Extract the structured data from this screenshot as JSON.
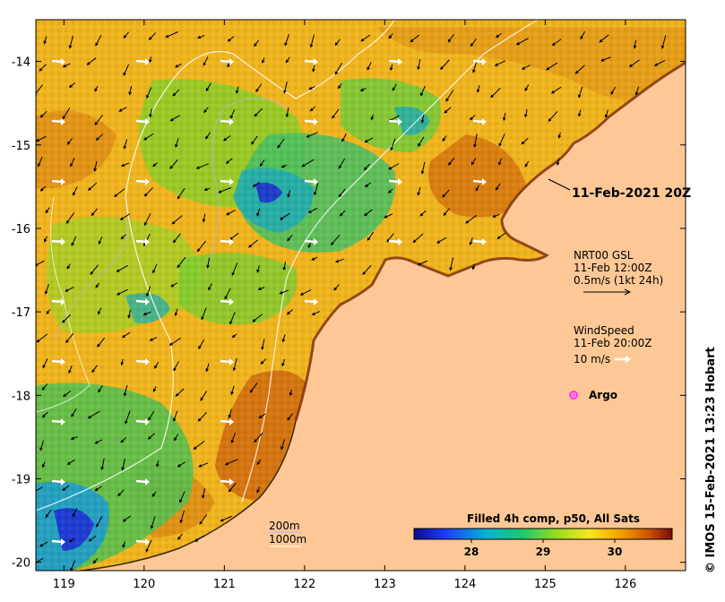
{
  "map": {
    "timestamp_label": "11-Feb-2021 20Z",
    "current_legend": {
      "line1": "NRT00 GSL",
      "line2": "11-Feb 12:00Z",
      "line3": "0.5m/s (1kt 24h)"
    },
    "wind_legend": {
      "line1": "WindSpeed",
      "line2": "11-Feb 20:00Z",
      "line3": "10 m/s"
    },
    "argo_label": "Argo",
    "argo_color": "#ff33ff",
    "depth_legend": {
      "contour_a": "200m",
      "contour_b": "1000m"
    },
    "colorbar": {
      "title": "Filled 4h comp, p50, All Sats",
      "ticks": [
        "28",
        "29",
        "30"
      ],
      "tick_values": [
        28,
        29,
        30
      ],
      "range": [
        27.2,
        30.8
      ]
    },
    "credit": "© IMOS 15-Feb-2021 13:23 Hobart",
    "land_color": "#fdc896",
    "x_axis": {
      "ticks": [
        "119",
        "120",
        "121",
        "122",
        "123",
        "124",
        "125",
        "126"
      ],
      "values": [
        119,
        120,
        121,
        122,
        123,
        124,
        125,
        126
      ],
      "range": [
        118.65,
        126.75
      ]
    },
    "y_axis": {
      "ticks": [
        "-14",
        "-15",
        "-16",
        "-17",
        "-18",
        "-19",
        "-20"
      ],
      "values": [
        -14,
        -15,
        -16,
        -17,
        -18,
        -19,
        -20
      ],
      "range": [
        -13.5,
        -20.1
      ]
    }
  }
}
